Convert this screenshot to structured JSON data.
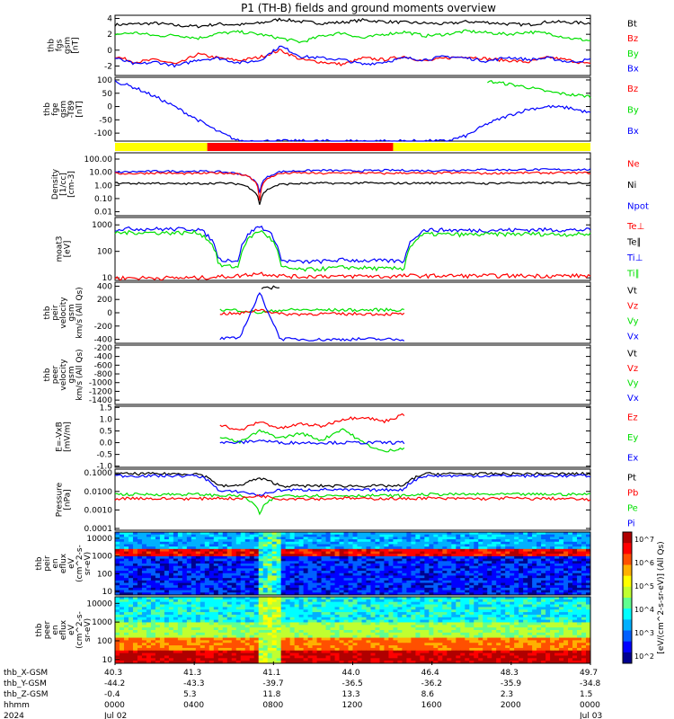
{
  "title": "P1 (TH-B) fields and ground moments overview",
  "colors": {
    "black": "#000000",
    "red": "#ff0000",
    "green": "#00e000",
    "blue": "#0000ff",
    "bar_yellow": "#ffff00",
    "bar_red": "#ff0000"
  },
  "chart_data": [
    {
      "type": "line",
      "ylabel": [
        "thb",
        "fgs",
        "gsm",
        "[nT]"
      ],
      "yticks": [
        "4",
        "2",
        "0",
        "-2"
      ],
      "ylim": [
        -3.2,
        4.4
      ],
      "legend": [
        {
          "label": "Bt",
          "color": "black"
        },
        {
          "label": "Bz",
          "color": "red"
        },
        {
          "label": "By",
          "color": "green"
        },
        {
          "label": "Bx",
          "color": "blue"
        }
      ],
      "series": [
        {
          "name": "Bt",
          "color": "black",
          "values": [
            3.2,
            3.3,
            3.4,
            3.1,
            3.0,
            3.3,
            3.2,
            3.4,
            3.9,
            3.6,
            3.4,
            3.5,
            3.8,
            3.6,
            3.5,
            3.4,
            3.3,
            3.6,
            3.5,
            3.3,
            3.2,
            3.6,
            3.5,
            3.4
          ]
        },
        {
          "name": "Bz",
          "color": "red",
          "values": [
            -0.8,
            -1.5,
            -1.2,
            -1.8,
            -0.5,
            -1.0,
            -1.3,
            -0.9,
            0.0,
            -1.2,
            -1.5,
            -1.8,
            -1.0,
            -1.2,
            -0.8,
            -1.4,
            -1.0,
            -0.8,
            -1.1,
            -1.3,
            -1.5,
            -0.9,
            -1.3,
            -1.8
          ]
        },
        {
          "name": "By",
          "color": "green",
          "values": [
            2.0,
            2.2,
            1.8,
            1.9,
            1.5,
            2.1,
            2.3,
            2.0,
            1.5,
            1.0,
            1.8,
            2.2,
            1.5,
            2.0,
            2.3,
            1.8,
            2.0,
            2.4,
            2.2,
            2.0,
            2.3,
            2.1,
            1.5,
            1.2
          ]
        },
        {
          "name": "Bx",
          "color": "blue",
          "values": [
            -1.0,
            -1.8,
            -1.5,
            -2.0,
            -1.2,
            -1.0,
            -1.6,
            -1.3,
            0.5,
            -0.8,
            -1.0,
            -1.2,
            -1.8,
            -1.5,
            -1.0,
            -1.2,
            -0.8,
            -1.0,
            -1.4,
            -0.9,
            -1.2,
            -1.0,
            -1.5,
            -1.2
          ]
        }
      ]
    },
    {
      "type": "line",
      "ylabel": [
        "thb",
        "fge",
        "gsm",
        "-T89",
        "[nT]"
      ],
      "yticks": [
        "100",
        "50",
        "0",
        "-50",
        "-100"
      ],
      "ylim": [
        -130,
        110
      ],
      "legend": [
        {
          "label": "Bz",
          "color": "red"
        },
        {
          "label": "By",
          "color": "green"
        },
        {
          "label": "Bx",
          "color": "blue"
        }
      ],
      "series": [
        {
          "name": "By",
          "color": "green",
          "values": [
            null,
            null,
            null,
            null,
            null,
            null,
            null,
            null,
            null,
            null,
            null,
            null,
            null,
            null,
            null,
            null,
            null,
            null,
            95,
            85,
            72,
            55,
            45,
            38
          ]
        },
        {
          "name": "Bx",
          "color": "blue",
          "values": [
            95,
            70,
            35,
            -5,
            -50,
            -95,
            -130,
            -130,
            -130,
            -130,
            -130,
            -130,
            -130,
            -130,
            -130,
            -130,
            -130,
            -110,
            -65,
            -35,
            -10,
            0,
            -5,
            -25
          ]
        }
      ]
    },
    {
      "type": "bar",
      "segments": [
        {
          "from": 0,
          "to": 0.194,
          "color": "yellow"
        },
        {
          "from": 0.194,
          "to": 0.585,
          "color": "red"
        },
        {
          "from": 0.585,
          "to": 1.0,
          "color": "yellow"
        }
      ]
    },
    {
      "type": "line",
      "scale": "log",
      "ylabel": [
        "Density",
        "[1/cc]",
        "[cm-3]"
      ],
      "yticks": [
        "100.00",
        "10.00",
        "1.00",
        "0.10",
        "0.01"
      ],
      "ylim": [
        0.005,
        300
      ],
      "legend": [
        {
          "label": "Ne",
          "color": "red"
        },
        {
          "label": "Ni",
          "color": "black"
        },
        {
          "label": "Npot",
          "color": "blue"
        }
      ],
      "series": [
        {
          "name": "Npot",
          "color": "blue",
          "values": [
            10,
            11,
            12,
            12,
            12,
            11,
            8,
            0.3,
            11,
            13,
            14,
            13,
            13,
            14,
            14,
            13,
            14,
            15,
            16,
            15,
            16,
            16,
            16,
            16
          ]
        },
        {
          "name": "Ne",
          "color": "red",
          "values": [
            8,
            8,
            9,
            8,
            8,
            9,
            8,
            0.05,
            8,
            9,
            8,
            9,
            9,
            8,
            9,
            8,
            9,
            9,
            8,
            9,
            9,
            9,
            9,
            9
          ]
        },
        {
          "name": "Ni",
          "color": "black",
          "values": [
            1.5,
            1.4,
            1.5,
            1.3,
            1.4,
            1.5,
            1.3,
            0.03,
            1.2,
            1.4,
            1.5,
            1.4,
            1.6,
            1.4,
            1.5,
            1.5,
            1.6,
            1.5,
            1.4,
            1.6,
            1.5,
            1.6,
            1.5,
            1.6
          ]
        }
      ]
    },
    {
      "type": "line",
      "scale": "log",
      "ylabel": [
        "moat3",
        "[eV]"
      ],
      "yticks": [
        "1000",
        "100",
        "10"
      ],
      "ylim": [
        8,
        1900
      ],
      "legend": [
        {
          "label": "Te⊥",
          "color": "red"
        },
        {
          "label": "Te∥",
          "color": "black"
        },
        {
          "label": "Ti⊥",
          "color": "blue"
        },
        {
          "label": "Ti∥",
          "color": "green"
        }
      ],
      "series": [
        {
          "name": "Ti⊥",
          "color": "blue",
          "values": [
            700,
            720,
            700,
            690,
            710,
            50,
            45,
            900,
            45,
            40,
            42,
            48,
            45,
            44,
            43,
            650,
            640,
            620,
            630,
            640,
            650,
            660,
            640,
            650
          ]
        },
        {
          "name": "Ti∥",
          "color": "green",
          "values": [
            500,
            520,
            510,
            500,
            520,
            30,
            25,
            600,
            25,
            20,
            22,
            25,
            24,
            22,
            23,
            450,
            440,
            430,
            440,
            450,
            460,
            450,
            440,
            450
          ]
        },
        {
          "name": "Te⊥",
          "color": "red",
          "values": [
            10,
            10,
            10,
            10,
            10,
            11,
            12,
            15,
            12,
            11,
            12,
            11,
            12,
            11,
            12,
            12,
            12,
            12,
            12,
            12,
            12,
            12,
            12,
            12
          ]
        }
      ]
    },
    {
      "type": "line",
      "ylabel": [
        "thb",
        "peir",
        "velocity",
        "gsm",
        "km/s (All Qs)"
      ],
      "yticks": [
        "400",
        "200",
        "0",
        "-200",
        "-400"
      ],
      "ylim": [
        -460,
        460
      ],
      "legend": [
        {
          "label": "Vt",
          "color": "black"
        },
        {
          "label": "Vz",
          "color": "red"
        },
        {
          "label": "Vy",
          "color": "green"
        },
        {
          "label": "Vx",
          "color": "blue"
        }
      ],
      "series": [
        {
          "name": "Vt",
          "color": "black",
          "values": [
            null,
            null,
            null,
            null,
            null,
            null,
            null,
            350,
            400,
            null,
            null,
            null,
            null,
            null,
            null,
            null,
            null,
            null,
            null,
            null,
            null,
            null,
            null,
            null
          ]
        },
        {
          "name": "Vy",
          "color": "green",
          "values": [
            null,
            null,
            null,
            null,
            null,
            40,
            40,
            0,
            40,
            45,
            40,
            42,
            40,
            45,
            40,
            null,
            null,
            null,
            null,
            null,
            null,
            null,
            null,
            null
          ]
        },
        {
          "name": "Vz",
          "color": "red",
          "values": [
            null,
            null,
            null,
            null,
            null,
            -10,
            -15,
            50,
            -20,
            -20,
            -15,
            -20,
            -15,
            -20,
            -20,
            null,
            null,
            null,
            null,
            null,
            null,
            null,
            null,
            null
          ]
        },
        {
          "name": "Vx",
          "color": "blue",
          "values": [
            null,
            null,
            null,
            null,
            null,
            -390,
            -385,
            300,
            -395,
            -400,
            -405,
            -400,
            -395,
            -400,
            -405,
            null,
            null,
            null,
            null,
            null,
            null,
            null,
            null,
            null
          ]
        }
      ]
    },
    {
      "type": "line",
      "ylabel": [
        "thb",
        "peer",
        "velocity",
        "gsm",
        "km/s (All Qs)"
      ],
      "yticks": [
        "-200",
        "-400",
        "-600",
        "-800",
        "-1000",
        "-1200",
        "-1400"
      ],
      "ylim": [
        -1500,
        -140
      ],
      "legend": [
        {
          "label": "Vt",
          "color": "black"
        },
        {
          "label": "Vz",
          "color": "red"
        },
        {
          "label": "Vy",
          "color": "green"
        },
        {
          "label": "Vx",
          "color": "blue"
        }
      ],
      "series": []
    },
    {
      "type": "line",
      "ylabel": [
        "E=-VxB",
        "[mV/m]"
      ],
      "yticks": [
        "1.5",
        "1.0",
        "0.5",
        "0.0",
        "-0.5",
        "-1.0"
      ],
      "ylim": [
        -1.05,
        1.55
      ],
      "legend": [
        {
          "label": "Ez",
          "color": "red"
        },
        {
          "label": "Ey",
          "color": "green"
        },
        {
          "label": "Ex",
          "color": "blue"
        }
      ],
      "series": [
        {
          "name": "Ez",
          "color": "red",
          "values": [
            null,
            null,
            null,
            null,
            null,
            0.8,
            0.5,
            0.9,
            0.6,
            0.8,
            0.7,
            1.0,
            1.1,
            0.9,
            1.2,
            null,
            null,
            null,
            null,
            null,
            null,
            null,
            null,
            null
          ]
        },
        {
          "name": "Ey",
          "color": "green",
          "values": [
            null,
            null,
            null,
            null,
            null,
            0.3,
            0.0,
            0.5,
            0.2,
            0.4,
            0.1,
            0.6,
            0.0,
            -0.4,
            -0.2,
            null,
            null,
            null,
            null,
            null,
            null,
            null,
            null,
            null
          ]
        },
        {
          "name": "Ex",
          "color": "blue",
          "values": [
            null,
            null,
            null,
            null,
            null,
            0.0,
            0.0,
            0.1,
            0.0,
            0.0,
            0.0,
            0.0,
            0.0,
            0.0,
            0.0,
            null,
            null,
            null,
            null,
            null,
            null,
            null,
            null,
            null
          ]
        }
      ]
    },
    {
      "type": "line",
      "scale": "log",
      "ylabel": [
        "Pressure",
        "[nPa]"
      ],
      "yticks": [
        "0.1000",
        "0.0100",
        "0.0010",
        "0.0001"
      ],
      "ylim": [
        8e-05,
        0.16
      ],
      "legend": [
        {
          "label": "Pt",
          "color": "black"
        },
        {
          "label": "Pb",
          "color": "red"
        },
        {
          "label": "Pe",
          "color": "green"
        },
        {
          "label": "Pi",
          "color": "blue"
        }
      ],
      "series": [
        {
          "name": "Pt",
          "color": "black",
          "values": [
            0.09,
            0.09,
            0.09,
            0.09,
            0.09,
            0.02,
            0.02,
            0.05,
            0.02,
            0.02,
            0.02,
            0.02,
            0.02,
            0.02,
            0.02,
            0.09,
            0.09,
            0.09,
            0.09,
            0.09,
            0.09,
            0.09,
            0.09,
            0.09
          ]
        },
        {
          "name": "Pi",
          "color": "blue",
          "values": [
            0.07,
            0.07,
            0.07,
            0.07,
            0.07,
            0.01,
            0.01,
            0.006,
            0.012,
            0.012,
            0.013,
            0.012,
            0.012,
            0.012,
            0.013,
            0.07,
            0.07,
            0.07,
            0.07,
            0.07,
            0.07,
            0.07,
            0.07,
            0.07
          ]
        },
        {
          "name": "Pe",
          "color": "green",
          "values": [
            0.007,
            0.007,
            0.007,
            0.007,
            0.007,
            0.006,
            0.006,
            0.0005,
            0.006,
            0.006,
            0.006,
            0.006,
            0.006,
            0.006,
            0.006,
            0.007,
            0.007,
            0.007,
            0.007,
            0.007,
            0.007,
            0.007,
            0.007,
            0.007
          ]
        },
        {
          "name": "Pb",
          "color": "red",
          "values": [
            0.004,
            0.0045,
            0.004,
            0.0042,
            0.004,
            0.0045,
            0.004,
            0.006,
            0.004,
            0.0042,
            0.004,
            0.0045,
            0.004,
            0.0042,
            0.004,
            0.0045,
            0.004,
            0.0042,
            0.004,
            0.0045,
            0.004,
            0.0042,
            0.004,
            0.0035
          ]
        }
      ]
    },
    {
      "type": "heatmap",
      "ylabel": [
        "thb",
        "peir",
        "en",
        "eflux",
        "eV",
        "(cm^2-s-",
        "sr-eV)"
      ],
      "yticks": [
        "10000",
        "1000",
        "100",
        "10"
      ],
      "ylim_log": [
        0.8,
        4.35
      ]
    },
    {
      "type": "heatmap",
      "ylabel": [
        "thb",
        "peer",
        "en",
        "eflux",
        "eV",
        "(cm^2-s-",
        "sr-eV)"
      ],
      "yticks": [
        "10000",
        "1000",
        "100",
        "10"
      ],
      "ylim_log": [
        0.8,
        4.35
      ]
    }
  ],
  "colorbar": {
    "ticks": [
      "10^7",
      "10^6",
      "10^5",
      "10^4",
      "10^3",
      "10^2"
    ],
    "label": "[eV/(cm^2-s-sr-eV)] (All Qs)"
  },
  "x_axis": {
    "row_labels": [
      "thb_X-GSM",
      "thb_Y-GSM",
      "thb_Z-GSM",
      "hhmm",
      "2024"
    ],
    "columns": [
      [
        "40.3",
        "-44.2",
        "-0.4",
        "0000",
        "Jul 02"
      ],
      [
        "41.3",
        "-43.3",
        "5.3",
        "0400",
        ""
      ],
      [
        "41.1",
        "-39.7",
        "11.8",
        "0800",
        ""
      ],
      [
        "44.0",
        "-36.5",
        "13.3",
        "1200",
        ""
      ],
      [
        "46.4",
        "-36.2",
        "8.6",
        "1600",
        ""
      ],
      [
        "48.3",
        "-35.9",
        "2.3",
        "2000",
        ""
      ],
      [
        "49.7",
        "-34.8",
        "1.5",
        "0000",
        "Jul 03"
      ]
    ]
  }
}
